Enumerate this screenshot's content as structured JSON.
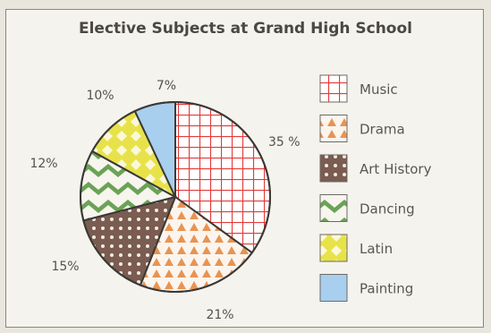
{
  "chart_data": {
    "type": "pie",
    "title": "Elective Subjects at Grand High School",
    "legend_position": "right",
    "slices": [
      {
        "name": "Music",
        "value": 35,
        "label": "35 %",
        "pattern": "grid",
        "color": "#e23a3a"
      },
      {
        "name": "Drama",
        "value": 21,
        "label": "21%",
        "pattern": "triangles",
        "color": "#e89452"
      },
      {
        "name": "Art History",
        "value": 15,
        "label": "15%",
        "pattern": "dots",
        "color": "#7a5c50"
      },
      {
        "name": "Dancing",
        "value": 12,
        "label": "12%",
        "pattern": "zigzag",
        "color": "#6aa356"
      },
      {
        "name": "Latin",
        "value": 10,
        "label": "10%",
        "pattern": "diamonds",
        "color": "#e8e24a"
      },
      {
        "name": "Painting",
        "value": 7,
        "label": "7%",
        "pattern": "solid",
        "color": "#a8cfee"
      }
    ]
  }
}
